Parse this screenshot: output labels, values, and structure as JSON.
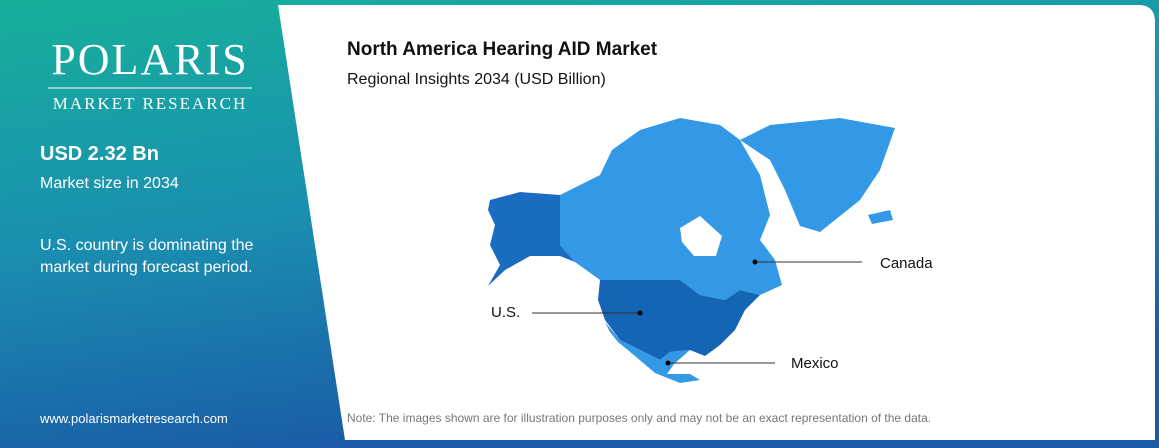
{
  "sidebar": {
    "logo": {
      "name": "POLARIS",
      "tagline": "MARKET RESEARCH"
    },
    "stat": {
      "value": "USD 2.32 Bn",
      "label": "Market size in 2034"
    },
    "note": "U.S. country is dominating the market during forecast period.",
    "website": "www.polarismarketresearch.com"
  },
  "main": {
    "title": "North America Hearing AID Market",
    "subtitle": "Regional Insights 2034 (USD Billion)",
    "regions": [
      "Canada",
      "U.S.",
      "Mexico"
    ],
    "footnote": "Note: The images shown are for illustration purposes only and may not be an exact representation of the data."
  }
}
